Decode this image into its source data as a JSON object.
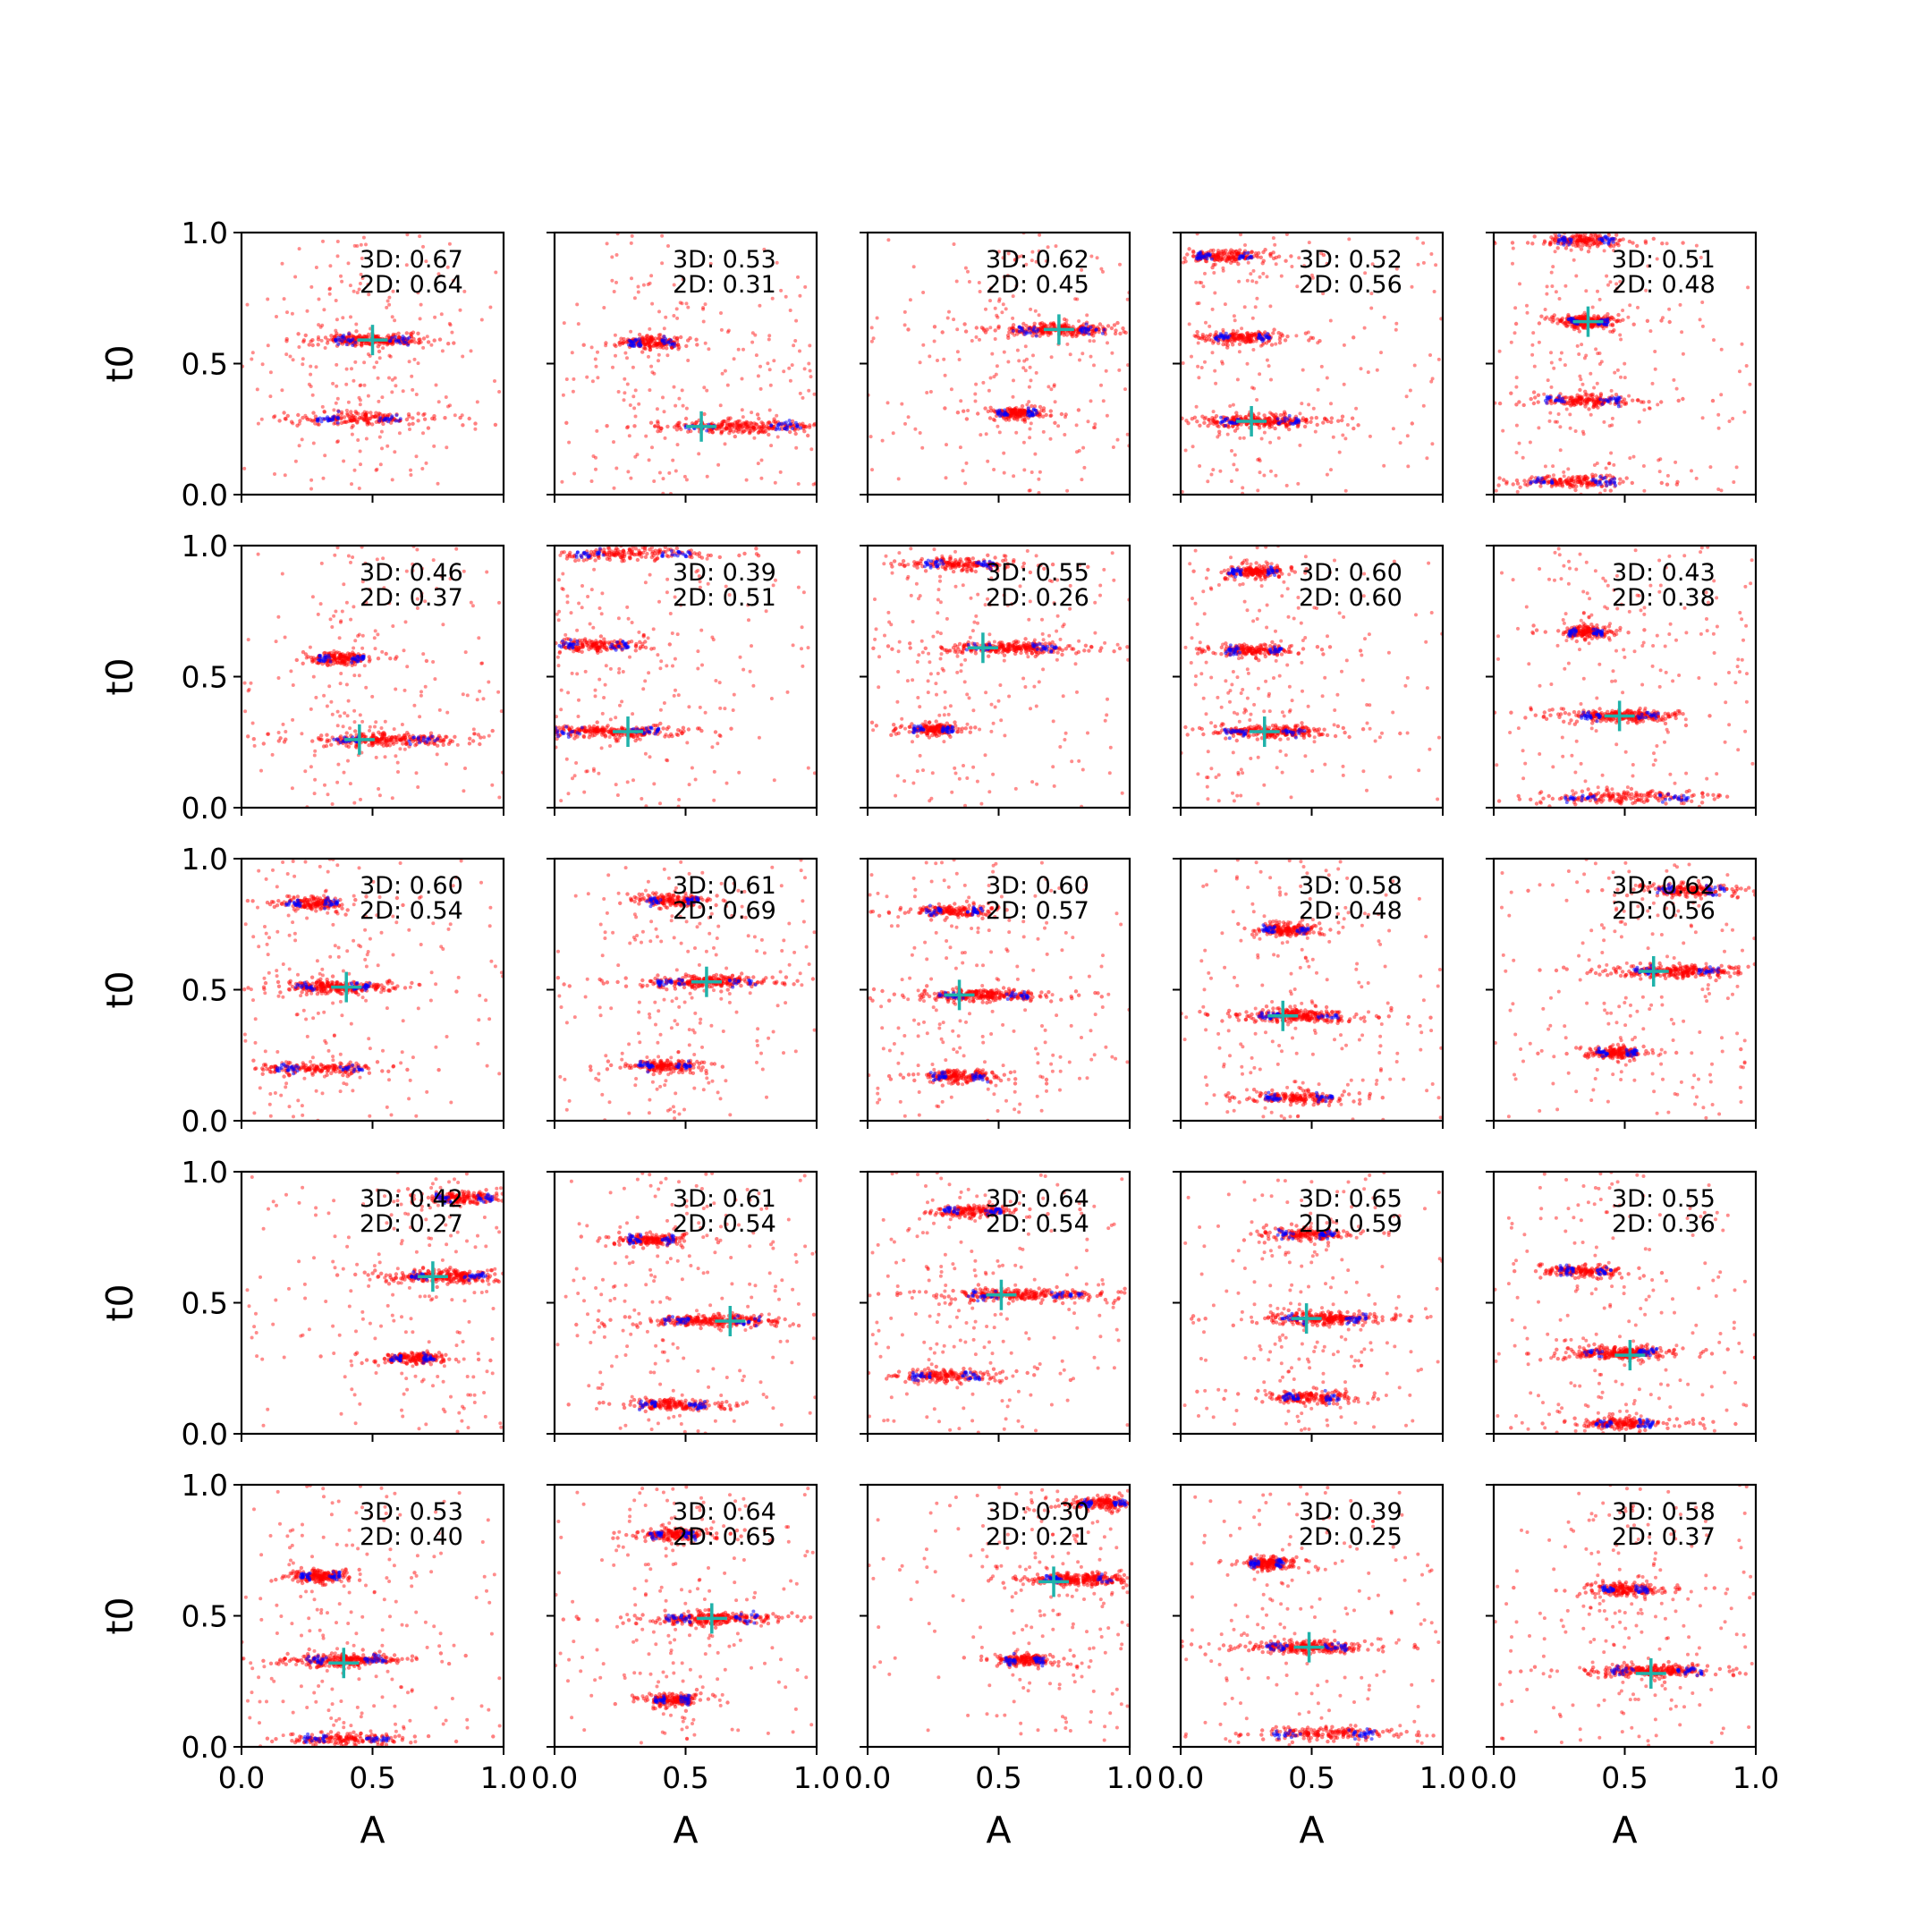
{
  "chart_data": {
    "type": "scatter",
    "layout": {
      "rows": 5,
      "cols": 5
    },
    "xlabel": "A",
    "ylabel": "t0",
    "xlim": [
      0.0,
      1.0
    ],
    "ylim": [
      0.0,
      1.0
    ],
    "xticks": [
      "0.0",
      "0.5",
      "1.0"
    ],
    "yticks": [
      "0.0",
      "0.5",
      "1.0"
    ],
    "series_colors": {
      "sample": "#ff0000",
      "reference": "#0000ff",
      "truth": "#20b2aa"
    },
    "panels": [
      {
        "ann3d": "3D: 0.67",
        "ann2d": "2D: 0.64",
        "truth": [
          0.5,
          0.59
        ],
        "clusters": [
          {
            "y": 0.59,
            "x": 0.5,
            "w": 0.13
          },
          {
            "y": 0.29,
            "x": 0.45,
            "w": 0.15
          }
        ]
      },
      {
        "ann3d": "3D: 0.53",
        "ann2d": "2D: 0.31",
        "truth": [
          0.56,
          0.26
        ],
        "clusters": [
          {
            "y": 0.26,
            "x": 0.72,
            "w": 0.2
          },
          {
            "y": 0.58,
            "x": 0.37,
            "w": 0.08
          }
        ]
      },
      {
        "ann3d": "3D: 0.62",
        "ann2d": "2D: 0.45",
        "truth": [
          0.73,
          0.63
        ],
        "clusters": [
          {
            "y": 0.63,
            "x": 0.73,
            "w": 0.16
          },
          {
            "y": 0.31,
            "x": 0.57,
            "w": 0.07
          }
        ]
      },
      {
        "ann3d": "3D: 0.52",
        "ann2d": "2D: 0.56",
        "truth": [
          0.27,
          0.28
        ],
        "clusters": [
          {
            "y": 0.28,
            "x": 0.3,
            "w": 0.14
          },
          {
            "y": 0.6,
            "x": 0.24,
            "w": 0.1
          },
          {
            "y": 0.91,
            "x": 0.17,
            "w": 0.1
          }
        ]
      },
      {
        "ann3d": "3D: 0.51",
        "ann2d": "2D: 0.48",
        "truth": [
          0.36,
          0.66
        ],
        "clusters": [
          {
            "y": 0.66,
            "x": 0.36,
            "w": 0.07
          },
          {
            "y": 0.36,
            "x": 0.34,
            "w": 0.13
          },
          {
            "y": 0.05,
            "x": 0.3,
            "w": 0.15
          },
          {
            "y": 0.97,
            "x": 0.35,
            "w": 0.1
          }
        ]
      },
      {
        "ann3d": "3D: 0.46",
        "ann2d": "2D: 0.37",
        "truth": [
          0.45,
          0.26
        ],
        "clusters": [
          {
            "y": 0.26,
            "x": 0.55,
            "w": 0.18
          },
          {
            "y": 0.57,
            "x": 0.38,
            "w": 0.08
          }
        ]
      },
      {
        "ann3d": "3D: 0.39",
        "ann2d": "2D: 0.51",
        "truth": [
          0.28,
          0.29
        ],
        "clusters": [
          {
            "y": 0.29,
            "x": 0.2,
            "w": 0.18
          },
          {
            "y": 0.62,
            "x": 0.15,
            "w": 0.12
          },
          {
            "y": 0.97,
            "x": 0.3,
            "w": 0.2
          }
        ]
      },
      {
        "ann3d": "3D: 0.55",
        "ann2d": "2D: 0.26",
        "truth": [
          0.44,
          0.61
        ],
        "clusters": [
          {
            "y": 0.61,
            "x": 0.55,
            "w": 0.16
          },
          {
            "y": 0.93,
            "x": 0.35,
            "w": 0.12
          },
          {
            "y": 0.3,
            "x": 0.25,
            "w": 0.07
          }
        ]
      },
      {
        "ann3d": "3D: 0.60",
        "ann2d": "2D: 0.60",
        "truth": [
          0.32,
          0.29
        ],
        "clusters": [
          {
            "y": 0.29,
            "x": 0.32,
            "w": 0.14
          },
          {
            "y": 0.6,
            "x": 0.28,
            "w": 0.1
          },
          {
            "y": 0.9,
            "x": 0.28,
            "w": 0.09
          }
        ]
      },
      {
        "ann3d": "3D: 0.43",
        "ann2d": "2D: 0.38",
        "truth": [
          0.48,
          0.35
        ],
        "clusters": [
          {
            "y": 0.35,
            "x": 0.48,
            "w": 0.14
          },
          {
            "y": 0.67,
            "x": 0.35,
            "w": 0.06
          },
          {
            "y": 0.04,
            "x": 0.5,
            "w": 0.22
          }
        ]
      },
      {
        "ann3d": "3D: 0.60",
        "ann2d": "2D: 0.54",
        "truth": [
          0.4,
          0.51
        ],
        "clusters": [
          {
            "y": 0.51,
            "x": 0.35,
            "w": 0.13
          },
          {
            "y": 0.2,
            "x": 0.3,
            "w": 0.15
          },
          {
            "y": 0.83,
            "x": 0.27,
            "w": 0.09
          }
        ]
      },
      {
        "ann3d": "3D: 0.61",
        "ann2d": "2D: 0.69",
        "truth": [
          0.58,
          0.53
        ],
        "clusters": [
          {
            "y": 0.53,
            "x": 0.58,
            "w": 0.17
          },
          {
            "y": 0.84,
            "x": 0.45,
            "w": 0.09
          },
          {
            "y": 0.21,
            "x": 0.42,
            "w": 0.09
          }
        ]
      },
      {
        "ann3d": "3D: 0.60",
        "ann2d": "2D: 0.57",
        "truth": [
          0.35,
          0.48
        ],
        "clusters": [
          {
            "y": 0.48,
            "x": 0.45,
            "w": 0.16
          },
          {
            "y": 0.8,
            "x": 0.33,
            "w": 0.1
          },
          {
            "y": 0.17,
            "x": 0.35,
            "w": 0.1
          }
        ]
      },
      {
        "ann3d": "3D: 0.58",
        "ann2d": "2D: 0.48",
        "truth": [
          0.39,
          0.4
        ],
        "clusters": [
          {
            "y": 0.4,
            "x": 0.45,
            "w": 0.14
          },
          {
            "y": 0.73,
            "x": 0.4,
            "w": 0.08
          },
          {
            "y": 0.09,
            "x": 0.45,
            "w": 0.12
          }
        ]
      },
      {
        "ann3d": "3D: 0.62",
        "ann2d": "2D: 0.56",
        "truth": [
          0.61,
          0.57
        ],
        "clusters": [
          {
            "y": 0.57,
            "x": 0.7,
            "w": 0.15
          },
          {
            "y": 0.88,
            "x": 0.75,
            "w": 0.12
          },
          {
            "y": 0.26,
            "x": 0.47,
            "w": 0.07
          }
        ]
      },
      {
        "ann3d": "3D: 0.42",
        "ann2d": "2D: 0.27",
        "truth": [
          0.73,
          0.6
        ],
        "clusters": [
          {
            "y": 0.6,
            "x": 0.78,
            "w": 0.14
          },
          {
            "y": 0.9,
            "x": 0.85,
            "w": 0.1
          },
          {
            "y": 0.29,
            "x": 0.65,
            "w": 0.08
          }
        ]
      },
      {
        "ann3d": "3D: 0.61",
        "ann2d": "2D: 0.54",
        "truth": [
          0.67,
          0.43
        ],
        "clusters": [
          {
            "y": 0.43,
            "x": 0.6,
            "w": 0.17
          },
          {
            "y": 0.74,
            "x": 0.37,
            "w": 0.08
          },
          {
            "y": 0.11,
            "x": 0.45,
            "w": 0.12
          }
        ]
      },
      {
        "ann3d": "3D: 0.64",
        "ann2d": "2D: 0.54",
        "truth": [
          0.51,
          0.53
        ],
        "clusters": [
          {
            "y": 0.53,
            "x": 0.6,
            "w": 0.2
          },
          {
            "y": 0.22,
            "x": 0.3,
            "w": 0.12
          },
          {
            "y": 0.85,
            "x": 0.4,
            "w": 0.1
          }
        ]
      },
      {
        "ann3d": "3D: 0.65",
        "ann2d": "2D: 0.59",
        "truth": [
          0.48,
          0.44
        ],
        "clusters": [
          {
            "y": 0.44,
            "x": 0.55,
            "w": 0.15
          },
          {
            "y": 0.76,
            "x": 0.48,
            "w": 0.1
          },
          {
            "y": 0.14,
            "x": 0.5,
            "w": 0.1
          }
        ]
      },
      {
        "ann3d": "3D: 0.55",
        "ann2d": "2D: 0.36",
        "truth": [
          0.52,
          0.3
        ],
        "clusters": [
          {
            "y": 0.31,
            "x": 0.48,
            "w": 0.13
          },
          {
            "y": 0.62,
            "x": 0.35,
            "w": 0.09
          },
          {
            "y": 0.04,
            "x": 0.5,
            "w": 0.1
          }
        ]
      },
      {
        "ann3d": "3D: 0.53",
        "ann2d": "2D: 0.40",
        "truth": [
          0.39,
          0.32
        ],
        "clusters": [
          {
            "y": 0.33,
            "x": 0.4,
            "w": 0.14
          },
          {
            "y": 0.65,
            "x": 0.3,
            "w": 0.07
          },
          {
            "y": 0.03,
            "x": 0.4,
            "w": 0.15
          }
        ]
      },
      {
        "ann3d": "3D: 0.64",
        "ann2d": "2D: 0.65",
        "truth": [
          0.6,
          0.49
        ],
        "clusters": [
          {
            "y": 0.49,
            "x": 0.6,
            "w": 0.16
          },
          {
            "y": 0.81,
            "x": 0.45,
            "w": 0.08
          },
          {
            "y": 0.18,
            "x": 0.45,
            "w": 0.06
          }
        ]
      },
      {
        "ann3d": "3D: 0.30",
        "ann2d": "2D: 0.21",
        "truth": [
          0.71,
          0.63
        ],
        "clusters": [
          {
            "y": 0.64,
            "x": 0.8,
            "w": 0.12
          },
          {
            "y": 0.93,
            "x": 0.9,
            "w": 0.08
          },
          {
            "y": 0.33,
            "x": 0.6,
            "w": 0.07
          }
        ]
      },
      {
        "ann3d": "3D: 0.39",
        "ann2d": "2D: 0.25",
        "truth": [
          0.49,
          0.38
        ],
        "clusters": [
          {
            "y": 0.38,
            "x": 0.48,
            "w": 0.14
          },
          {
            "y": 0.7,
            "x": 0.33,
            "w": 0.06
          },
          {
            "y": 0.05,
            "x": 0.55,
            "w": 0.18
          }
        ]
      },
      {
        "ann3d": "3D: 0.58",
        "ann2d": "2D: 0.37",
        "truth": [
          0.6,
          0.28
        ],
        "clusters": [
          {
            "y": 0.29,
            "x": 0.62,
            "w": 0.16
          },
          {
            "y": 0.6,
            "x": 0.5,
            "w": 0.08
          }
        ]
      }
    ]
  }
}
